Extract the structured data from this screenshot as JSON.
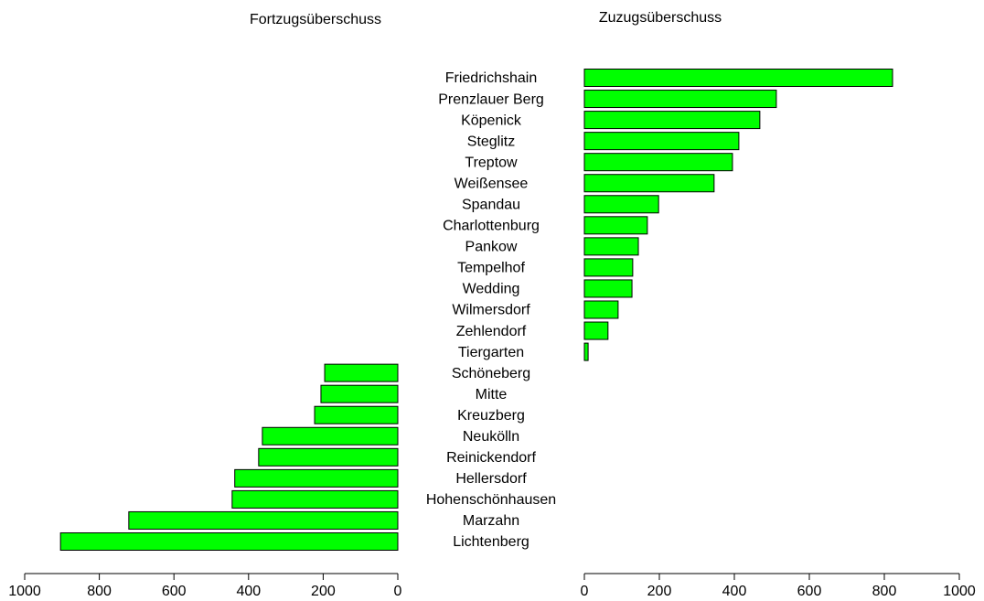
{
  "chart_data": [
    {
      "type": "hbar",
      "title": "Fortzugsüberschuss",
      "categories": [
        "Friedrichshain",
        "Prenzlauer Berg",
        "Köpenick",
        "Steglitz",
        "Treptow",
        "Weißensee",
        "Spandau",
        "Charlottenburg",
        "Pankow",
        "Tempelhof",
        "Wedding",
        "Wilmersdorf",
        "Zehlendorf",
        "Tiergarten",
        "Schöneberg",
        "Mitte",
        "Kreuzberg",
        "Neukölln",
        "Reinickendorf",
        "Hellersdorf",
        "Hohenschönhausen",
        "Marzahn",
        "Lichtenberg"
      ],
      "values": [
        0,
        0,
        0,
        0,
        0,
        0,
        0,
        0,
        0,
        0,
        0,
        0,
        0,
        0,
        196,
        206,
        223,
        363,
        373,
        437,
        444,
        721,
        904
      ],
      "color": "#00ff00",
      "xlim": [
        1000,
        0
      ],
      "xticks": [
        1000,
        800,
        600,
        400,
        200,
        0
      ]
    },
    {
      "type": "hbar",
      "title": "Zuzugsüberschuss",
      "values": [
        822,
        512,
        468,
        412,
        395,
        346,
        198,
        168,
        144,
        129,
        127,
        90,
        63,
        10,
        0,
        0,
        0,
        0,
        0,
        0,
        0,
        0,
        0
      ],
      "color": "#00ff00",
      "xlim": [
        0,
        1000
      ],
      "xticks": [
        0,
        200,
        400,
        600,
        800,
        1000
      ]
    }
  ]
}
